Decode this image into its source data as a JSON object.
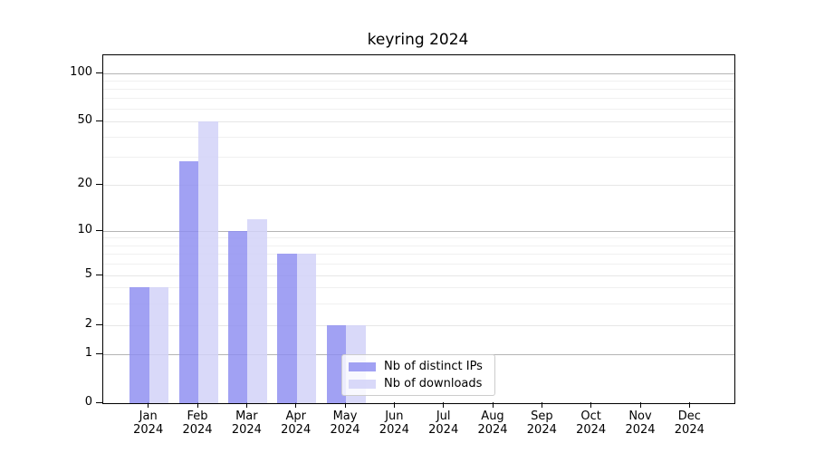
{
  "chart_data": {
    "type": "bar",
    "title": "keyring 2024",
    "categories": [
      "Jan",
      "Feb",
      "Mar",
      "Apr",
      "May",
      "Jun",
      "Jul",
      "Aug",
      "Sep",
      "Oct",
      "Nov",
      "Dec"
    ],
    "category_year_line": "2024",
    "series": [
      {
        "name": "Nb of distinct IPs",
        "color": "#a5a5f2",
        "fill": "rgba(140,140,240,0.82)",
        "values": [
          4,
          28,
          10,
          7,
          2,
          0,
          0,
          0,
          0,
          0,
          0,
          0
        ]
      },
      {
        "name": "Nb of downloads",
        "color": "#dadaf9",
        "fill": "rgba(210,210,248,0.85)",
        "values": [
          4,
          50,
          12,
          7,
          2,
          0,
          0,
          0,
          0,
          0,
          0,
          0
        ]
      }
    ],
    "yscale": "symlog",
    "ylim": [
      0,
      140
    ],
    "y_ticks": [
      0,
      1,
      2,
      5,
      10,
      20,
      50,
      100
    ],
    "y_minor_gridlines": [
      3,
      4,
      6,
      7,
      8,
      9,
      30,
      40,
      60,
      70,
      80,
      90
    ],
    "grid": true,
    "legend_position": "lower-center-inside",
    "colors": {
      "axis": "#000000",
      "major_grid": "#b4b4b4",
      "labeled_grid": "#e6e6e6",
      "minor_grid": "#f0f0f0",
      "background": "#ffffff"
    }
  }
}
